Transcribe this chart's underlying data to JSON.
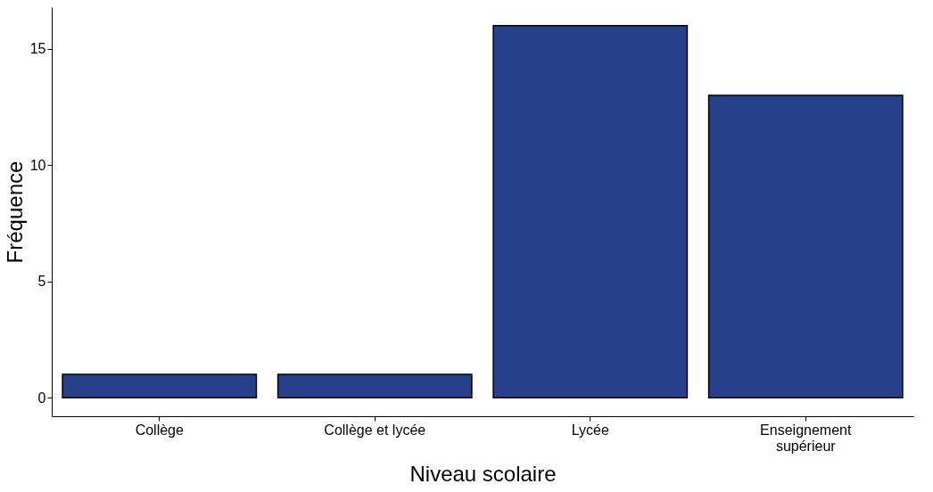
{
  "chart_data": {
    "type": "bar",
    "xlabel": "Niveau scolaire",
    "ylabel": "Fréquence",
    "categories": [
      "Collège",
      "Collège et lycée",
      "Lycée",
      "Enseignement supérieur"
    ],
    "values": [
      1,
      1,
      16,
      13
    ],
    "color": "#27408b",
    "ylim": [
      -0.8,
      16.8
    ],
    "yticks": [
      0,
      5,
      10,
      15
    ],
    "grid": false
  }
}
